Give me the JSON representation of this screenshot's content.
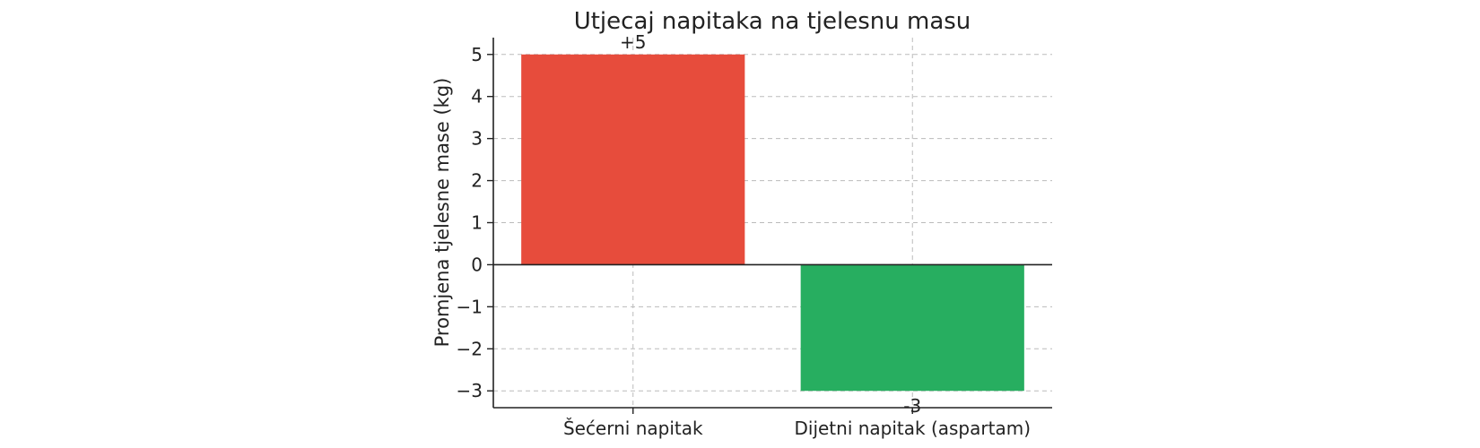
{
  "chart_data": {
    "type": "bar",
    "title": "Utjecaj napitaka na tjelesnu masu",
    "xlabel": "",
    "ylabel": "Promjena tjelesne mase (kg)",
    "categories": [
      "Šećerni napitak",
      "Dijetni napitak (aspartam)"
    ],
    "values": [
      5,
      -3
    ],
    "data_labels": [
      "+5",
      "-3"
    ],
    "colors": [
      "#e74c3c",
      "#27ae60"
    ],
    "ylim": [
      -3.4,
      5.4
    ],
    "yticks": [
      -3,
      -2,
      -1,
      0,
      1,
      2,
      3,
      4,
      5
    ],
    "ytick_labels": [
      "−3",
      "−2",
      "−1",
      "0",
      "1",
      "2",
      "3",
      "4",
      "5"
    ],
    "grid": true,
    "zero_line": true
  }
}
